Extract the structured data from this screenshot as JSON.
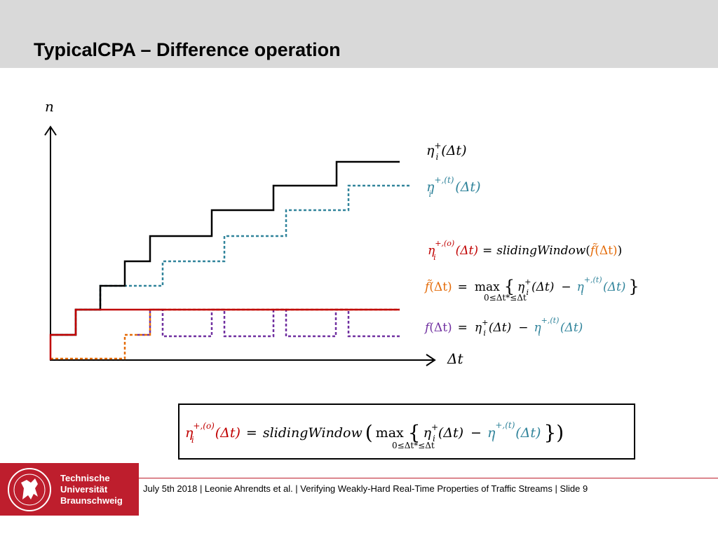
{
  "slide": {
    "title": "TypicalCPA – Difference operation"
  },
  "diagram": {
    "y_axis_label": "n",
    "x_axis_label": "Δt",
    "curves": {
      "eta_plus": {
        "sym": "η",
        "sup": "+",
        "sub": "i",
        "arg": "(Δt)"
      },
      "eta_plus_t": {
        "sym": "η",
        "sup": "+,(t)",
        "sub": "i",
        "arg": "(Δt)"
      }
    },
    "equations": {
      "eq1": {
        "lhs_sym": "η",
        "lhs_sup": "+,(o)",
        "lhs_sub": "i",
        "lhs_arg": "(Δt)",
        "eq": "=",
        "func": "slidingWindow",
        "open": "(",
        "ftilde": "f̃",
        "ftilde_arg": "(Δt)",
        "close": ")"
      },
      "eq2": {
        "lhs": "f̃",
        "lhs_arg": "(Δt)",
        "eq": "=",
        "max": "max",
        "max_sub": "0≤Δt*≤Δt",
        "brace_open": "{",
        "brace_close": "}",
        "t1_sym": "η",
        "t1_sup": "+",
        "t1_sub": "i",
        "t1_arg": "(Δt)",
        "minus": "−",
        "t2_sym": "η",
        "t2_sup": "+,(t)",
        "t2_sub": "i",
        "t2_arg": "(Δt)"
      },
      "eq3": {
        "lhs": "f",
        "lhs_arg": "(Δt)",
        "eq": "=",
        "t1_sym": "η",
        "t1_sup": "+",
        "t1_sub": "i",
        "t1_arg": "(Δt)",
        "minus": "−",
        "t2_sym": "η",
        "t2_sup": "+,(t)",
        "t2_sub": "i",
        "t2_arg": "(Δt)"
      }
    },
    "box_formula": {
      "lhs_sym": "η",
      "lhs_sup": "+,(o)",
      "lhs_sub": "i",
      "lhs_arg": "(Δt)",
      "eq": "=",
      "func": "slidingWindow",
      "paren_open": "(",
      "paren_close": ")",
      "max": "max",
      "max_sub": "0≤Δt*≤Δt",
      "brace_open": "{",
      "brace_close": "}",
      "t1_sym": "η",
      "t1_sup": "+",
      "t1_sub": "i",
      "t1_arg": "(Δt)",
      "minus": "−",
      "t2_sym": "η",
      "t2_sup": "+,(t)",
      "t2_sub": "i",
      "t2_arg": "(Δt)"
    }
  },
  "colors": {
    "eta_plus": "#000000",
    "eta_plus_t": "#31849b",
    "eta_plus_o": "#c00000",
    "f_tilde": "#e46c0a",
    "f": "#7030a0",
    "brand_red": "#be1e2d"
  },
  "footer": {
    "logo_lines": [
      "Technische",
      "Universität",
      "Braunschweig"
    ],
    "text": "July 5th 2018 | Leonie Ahrendts et al. | Verifying Weakly-Hard Real-Time Properties of Traffic Streams | Slide 9"
  }
}
